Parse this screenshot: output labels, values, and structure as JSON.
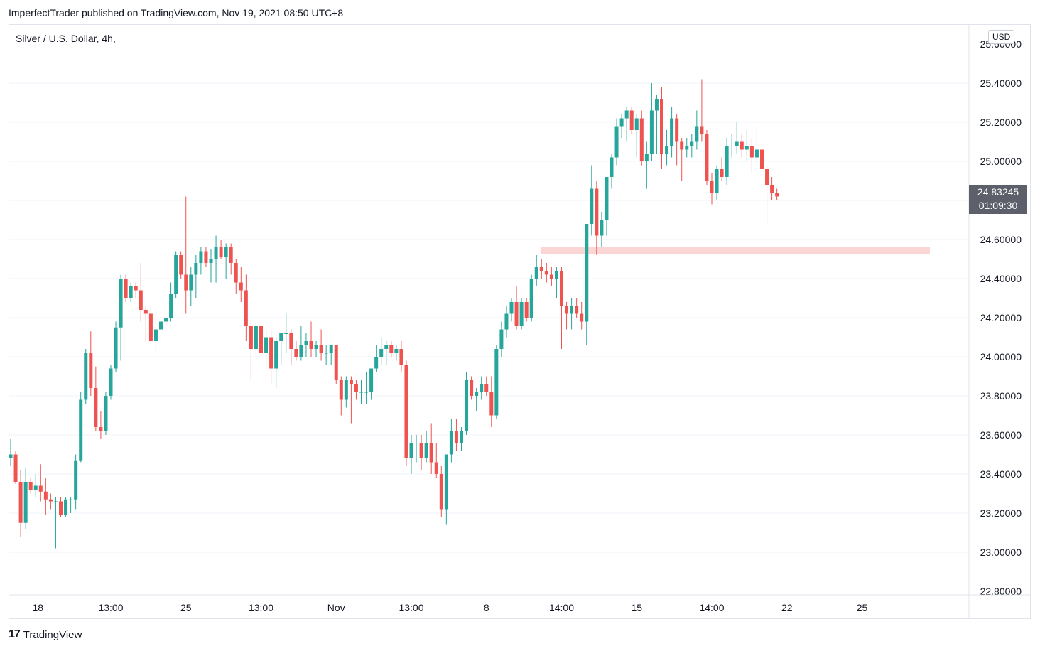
{
  "header": {
    "publisher_line": "ImperfectTrader published on TradingView.com, Nov 19, 2021 08:50 UTC+8"
  },
  "symbol": {
    "title": "Silver / U.S. Dollar, 4h,",
    "currency": "USD"
  },
  "last_price": {
    "price": "24.83245",
    "countdown": "01:09:30"
  },
  "footer": {
    "logo_text": "TradingView"
  },
  "colors": {
    "up": "#26a69a",
    "down": "#ef5350",
    "zone": "#fcd5d5",
    "grid": "#f0f3fa",
    "axis_text": "#131722"
  },
  "chart_data": {
    "type": "candlestick",
    "title": "Silver / U.S. Dollar, 4h,",
    "ylim": [
      22.8,
      25.6
    ],
    "y_ticks": [
      "25.60000",
      "25.40000",
      "25.20000",
      "25.00000",
      "24.80000",
      "24.60000",
      "24.40000",
      "24.20000",
      "24.00000",
      "23.80000",
      "23.60000",
      "23.40000",
      "23.20000",
      "23.00000",
      "22.80000"
    ],
    "x_ticks": [
      {
        "label": "18",
        "index": 5
      },
      {
        "label": "13:00",
        "index": 20
      },
      {
        "label": "25",
        "index": 35
      },
      {
        "label": "13:00",
        "index": 50
      },
      {
        "label": "Nov",
        "index": 65
      },
      {
        "label": "13:00",
        "index": 80
      },
      {
        "label": "8",
        "index": 95
      },
      {
        "label": "14:00",
        "index": 110
      },
      {
        "label": "15",
        "index": 125
      },
      {
        "label": "14:00",
        "index": 140
      },
      {
        "label": "22",
        "index": 155
      },
      {
        "label": "25",
        "index": 170
      }
    ],
    "zone": {
      "low": 24.52,
      "high": 24.55,
      "start_index": 97,
      "end_index": 172
    },
    "candles": [
      {
        "o": 23.48,
        "h": 23.58,
        "l": 23.44,
        "c": 23.5
      },
      {
        "o": 23.5,
        "h": 23.52,
        "l": 23.35,
        "c": 23.36
      },
      {
        "o": 23.36,
        "h": 23.42,
        "l": 23.08,
        "c": 23.15
      },
      {
        "o": 23.15,
        "h": 23.43,
        "l": 23.12,
        "c": 23.36
      },
      {
        "o": 23.36,
        "h": 23.38,
        "l": 23.3,
        "c": 23.32
      },
      {
        "o": 23.32,
        "h": 23.4,
        "l": 23.28,
        "c": 23.34
      },
      {
        "o": 23.34,
        "h": 23.45,
        "l": 23.26,
        "c": 23.31
      },
      {
        "o": 23.31,
        "h": 23.38,
        "l": 23.19,
        "c": 23.27
      },
      {
        "o": 23.27,
        "h": 23.3,
        "l": 23.22,
        "c": 23.26
      },
      {
        "o": 23.26,
        "h": 23.28,
        "l": 23.02,
        "c": 23.26
      },
      {
        "o": 23.26,
        "h": 23.28,
        "l": 23.18,
        "c": 23.19
      },
      {
        "o": 23.19,
        "h": 23.28,
        "l": 23.18,
        "c": 23.27
      },
      {
        "o": 23.27,
        "h": 23.28,
        "l": 23.2,
        "c": 23.27
      },
      {
        "o": 23.27,
        "h": 23.5,
        "l": 23.22,
        "c": 23.47
      },
      {
        "o": 23.47,
        "h": 23.82,
        "l": 23.46,
        "c": 23.78
      },
      {
        "o": 23.78,
        "h": 24.04,
        "l": 23.76,
        "c": 24.02
      },
      {
        "o": 24.02,
        "h": 24.13,
        "l": 23.8,
        "c": 23.84
      },
      {
        "o": 23.84,
        "h": 23.95,
        "l": 23.62,
        "c": 23.64
      },
      {
        "o": 23.64,
        "h": 23.72,
        "l": 23.58,
        "c": 23.62
      },
      {
        "o": 23.62,
        "h": 23.82,
        "l": 23.6,
        "c": 23.8
      },
      {
        "o": 23.8,
        "h": 23.96,
        "l": 23.78,
        "c": 23.94
      },
      {
        "o": 23.94,
        "h": 24.18,
        "l": 23.92,
        "c": 24.15
      },
      {
        "o": 24.15,
        "h": 24.42,
        "l": 23.98,
        "c": 24.4
      },
      {
        "o": 24.4,
        "h": 24.42,
        "l": 24.28,
        "c": 24.3
      },
      {
        "o": 24.3,
        "h": 24.38,
        "l": 24.28,
        "c": 24.36
      },
      {
        "o": 24.36,
        "h": 24.38,
        "l": 24.3,
        "c": 24.34
      },
      {
        "o": 24.34,
        "h": 24.48,
        "l": 24.18,
        "c": 24.24
      },
      {
        "o": 24.24,
        "h": 24.26,
        "l": 24.08,
        "c": 24.22
      },
      {
        "o": 24.22,
        "h": 24.26,
        "l": 24.06,
        "c": 24.08
      },
      {
        "o": 24.08,
        "h": 24.24,
        "l": 24.02,
        "c": 24.14
      },
      {
        "o": 24.14,
        "h": 24.22,
        "l": 24.12,
        "c": 24.18
      },
      {
        "o": 24.18,
        "h": 24.22,
        "l": 24.14,
        "c": 24.2
      },
      {
        "o": 24.2,
        "h": 24.38,
        "l": 24.18,
        "c": 24.32
      },
      {
        "o": 24.32,
        "h": 24.54,
        "l": 24.3,
        "c": 24.52
      },
      {
        "o": 24.52,
        "h": 24.54,
        "l": 24.4,
        "c": 24.42
      },
      {
        "o": 24.42,
        "h": 24.82,
        "l": 24.22,
        "c": 24.34
      },
      {
        "o": 24.34,
        "h": 24.46,
        "l": 24.26,
        "c": 24.42
      },
      {
        "o": 24.42,
        "h": 24.52,
        "l": 24.3,
        "c": 24.48
      },
      {
        "o": 24.48,
        "h": 24.56,
        "l": 24.42,
        "c": 24.54
      },
      {
        "o": 24.54,
        "h": 24.56,
        "l": 24.46,
        "c": 24.48
      },
      {
        "o": 24.48,
        "h": 24.55,
        "l": 24.38,
        "c": 24.5
      },
      {
        "o": 24.5,
        "h": 24.62,
        "l": 24.38,
        "c": 24.56
      },
      {
        "o": 24.56,
        "h": 24.6,
        "l": 24.5,
        "c": 24.51
      },
      {
        "o": 24.51,
        "h": 24.58,
        "l": 24.4,
        "c": 24.56
      },
      {
        "o": 24.56,
        "h": 24.58,
        "l": 24.42,
        "c": 24.48
      },
      {
        "o": 24.48,
        "h": 24.5,
        "l": 24.32,
        "c": 24.38
      },
      {
        "o": 24.38,
        "h": 24.46,
        "l": 24.28,
        "c": 24.34
      },
      {
        "o": 24.34,
        "h": 24.42,
        "l": 24.08,
        "c": 24.16
      },
      {
        "o": 24.16,
        "h": 24.18,
        "l": 23.88,
        "c": 24.04
      },
      {
        "o": 24.04,
        "h": 24.18,
        "l": 24.0,
        "c": 24.16
      },
      {
        "o": 24.16,
        "h": 24.18,
        "l": 23.98,
        "c": 24.02
      },
      {
        "o": 24.02,
        "h": 24.14,
        "l": 23.94,
        "c": 24.1
      },
      {
        "o": 24.1,
        "h": 24.14,
        "l": 23.86,
        "c": 23.94
      },
      {
        "o": 23.94,
        "h": 24.1,
        "l": 23.84,
        "c": 24.08
      },
      {
        "o": 24.08,
        "h": 24.12,
        "l": 23.96,
        "c": 24.12
      },
      {
        "o": 24.12,
        "h": 24.22,
        "l": 24.02,
        "c": 24.12
      },
      {
        "o": 24.12,
        "h": 24.14,
        "l": 23.96,
        "c": 24.04
      },
      {
        "o": 24.04,
        "h": 24.08,
        "l": 23.98,
        "c": 24.0
      },
      {
        "o": 24.0,
        "h": 24.16,
        "l": 23.98,
        "c": 24.06
      },
      {
        "o": 24.06,
        "h": 24.12,
        "l": 24.0,
        "c": 24.08
      },
      {
        "o": 24.08,
        "h": 24.18,
        "l": 24.0,
        "c": 24.04
      },
      {
        "o": 24.04,
        "h": 24.08,
        "l": 24.0,
        "c": 24.06
      },
      {
        "o": 24.06,
        "h": 24.14,
        "l": 23.98,
        "c": 24.02
      },
      {
        "o": 24.02,
        "h": 24.06,
        "l": 23.96,
        "c": 24.02
      },
      {
        "o": 24.02,
        "h": 24.04,
        "l": 23.96,
        "c": 24.06
      },
      {
        "o": 24.06,
        "h": 24.06,
        "l": 23.86,
        "c": 23.88
      },
      {
        "o": 23.88,
        "h": 23.9,
        "l": 23.7,
        "c": 23.78
      },
      {
        "o": 23.78,
        "h": 23.9,
        "l": 23.74,
        "c": 23.88
      },
      {
        "o": 23.88,
        "h": 23.9,
        "l": 23.66,
        "c": 23.86
      },
      {
        "o": 23.86,
        "h": 23.88,
        "l": 23.78,
        "c": 23.82
      },
      {
        "o": 23.82,
        "h": 23.88,
        "l": 23.76,
        "c": 23.82
      },
      {
        "o": 23.82,
        "h": 23.92,
        "l": 23.76,
        "c": 23.82
      },
      {
        "o": 23.82,
        "h": 23.94,
        "l": 23.78,
        "c": 23.94
      },
      {
        "o": 23.94,
        "h": 24.06,
        "l": 23.92,
        "c": 24.0
      },
      {
        "o": 24.0,
        "h": 24.1,
        "l": 23.96,
        "c": 24.04
      },
      {
        "o": 24.04,
        "h": 24.08,
        "l": 23.96,
        "c": 24.06
      },
      {
        "o": 24.06,
        "h": 24.08,
        "l": 24.0,
        "c": 24.02
      },
      {
        "o": 24.02,
        "h": 24.06,
        "l": 23.98,
        "c": 24.04
      },
      {
        "o": 24.04,
        "h": 24.08,
        "l": 23.92,
        "c": 23.96
      },
      {
        "o": 23.96,
        "h": 23.98,
        "l": 23.44,
        "c": 23.48
      },
      {
        "o": 23.48,
        "h": 23.6,
        "l": 23.4,
        "c": 23.56
      },
      {
        "o": 23.56,
        "h": 23.6,
        "l": 23.46,
        "c": 23.56
      },
      {
        "o": 23.56,
        "h": 23.6,
        "l": 23.42,
        "c": 23.48
      },
      {
        "o": 23.48,
        "h": 23.62,
        "l": 23.46,
        "c": 23.56
      },
      {
        "o": 23.56,
        "h": 23.66,
        "l": 23.4,
        "c": 23.46
      },
      {
        "o": 23.46,
        "h": 23.56,
        "l": 23.38,
        "c": 23.4
      },
      {
        "o": 23.4,
        "h": 23.44,
        "l": 23.18,
        "c": 23.22
      },
      {
        "o": 23.22,
        "h": 23.5,
        "l": 23.14,
        "c": 23.5
      },
      {
        "o": 23.5,
        "h": 23.68,
        "l": 23.46,
        "c": 23.62
      },
      {
        "o": 23.62,
        "h": 23.68,
        "l": 23.52,
        "c": 23.56
      },
      {
        "o": 23.56,
        "h": 23.64,
        "l": 23.52,
        "c": 23.62
      },
      {
        "o": 23.62,
        "h": 23.92,
        "l": 23.6,
        "c": 23.88
      },
      {
        "o": 23.88,
        "h": 23.9,
        "l": 23.78,
        "c": 23.8
      },
      {
        "o": 23.8,
        "h": 23.84,
        "l": 23.72,
        "c": 23.82
      },
      {
        "o": 23.82,
        "h": 23.9,
        "l": 23.78,
        "c": 23.86
      },
      {
        "o": 23.86,
        "h": 23.9,
        "l": 23.8,
        "c": 23.82
      }
    ],
    "candles_note_only_visible": true
  }
}
